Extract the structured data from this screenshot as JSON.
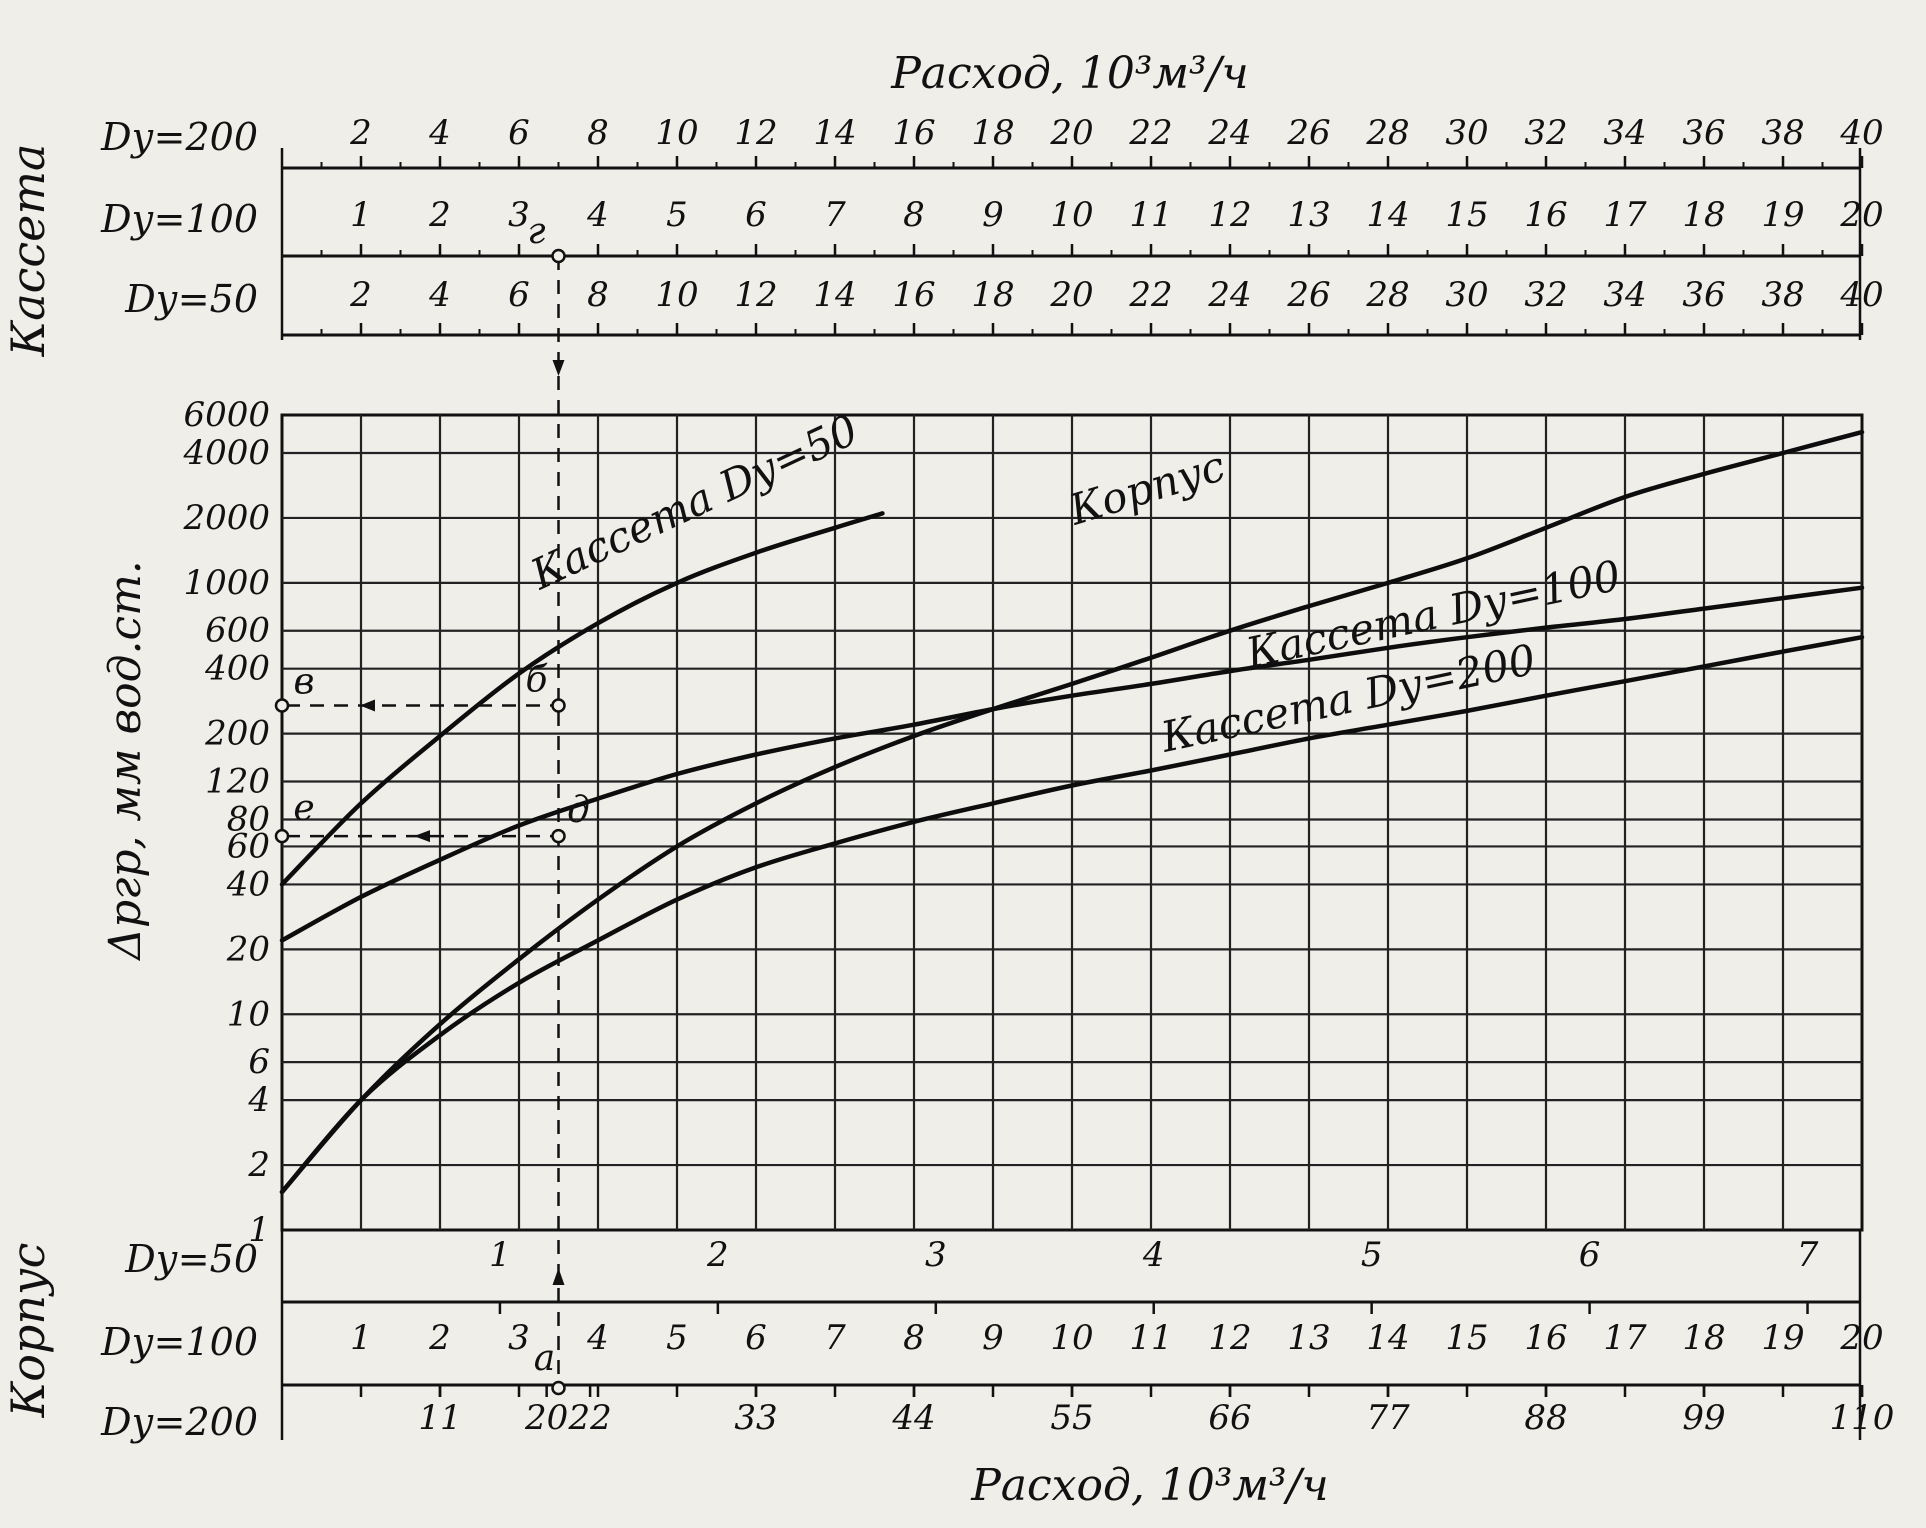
{
  "chart_data": {
    "type": "line",
    "title": "",
    "top_axis": {
      "title": "Расход, 10³м³/ч",
      "group_label": "Кассета",
      "rows": [
        {
          "name": "Dу=200",
          "ticks": [
            "2",
            "4",
            "6",
            "8",
            "10",
            "12",
            "14",
            "16",
            "18",
            "20",
            "22",
            "24",
            "26",
            "28",
            "30",
            "32",
            "34",
            "36",
            "38",
            "40"
          ]
        },
        {
          "name": "Dу=100",
          "ticks": [
            "1",
            "2",
            "3",
            "4",
            "5",
            "6",
            "7",
            "8",
            "9",
            "10",
            "11",
            "12",
            "13",
            "14",
            "15",
            "16",
            "17",
            "18",
            "19",
            "20"
          ]
        },
        {
          "name": "Dу=50",
          "ticks": [
            "2",
            "4",
            "6",
            "8",
            "10",
            "12",
            "14",
            "16",
            "18",
            "20",
            "22",
            "24",
            "26",
            "28",
            "30",
            "32",
            "34",
            "36",
            "38",
            "40"
          ]
        }
      ]
    },
    "bottom_axis": {
      "title": "Расход, 10³м³/ч",
      "group_label": "Корпус",
      "rows": [
        {
          "name": "Dу=50",
          "ticks": [
            "1",
            "2",
            "3",
            "4",
            "5",
            "6",
            "7"
          ]
        },
        {
          "name": "Dу=100",
          "ticks": [
            "1",
            "2",
            "3",
            "4",
            "5",
            "6",
            "7",
            "8",
            "9",
            "10",
            "11",
            "12",
            "13",
            "14",
            "15",
            "16",
            "17",
            "18",
            "19",
            "20"
          ]
        },
        {
          "name": "Dу=200",
          "ticks": [
            "11",
            "20",
            "22",
            "33",
            "44",
            "55",
            "66",
            "77",
            "88",
            "99",
            "110"
          ]
        }
      ]
    },
    "y_axis": {
      "title": "Δpгр, мм вод.ст.",
      "scale": "log",
      "ylim": [
        1,
        6000
      ],
      "tick_labels": [
        "1",
        "2",
        "4",
        "6",
        "10",
        "20",
        "40",
        "60",
        "80",
        "120",
        "200",
        "400",
        "600",
        "1000",
        "2000",
        "4000",
        "6000"
      ]
    },
    "x_axis": {
      "ref_row": "Корпус Dу=100",
      "xlim": [
        0,
        20
      ]
    },
    "series": [
      {
        "name": "Кассета Dу=50",
        "points": [
          [
            0,
            40
          ],
          [
            1,
            95
          ],
          [
            2,
            195
          ],
          [
            3,
            380
          ],
          [
            4,
            650
          ],
          [
            5,
            1000
          ],
          [
            6,
            1380
          ],
          [
            7,
            1800
          ],
          [
            7.6,
            2100
          ]
        ]
      },
      {
        "name": "Корпус",
        "points": [
          [
            0,
            1.5
          ],
          [
            1,
            4
          ],
          [
            2,
            9
          ],
          [
            3,
            18
          ],
          [
            4,
            34
          ],
          [
            5,
            60
          ],
          [
            6,
            95
          ],
          [
            7,
            140
          ],
          [
            8,
            195
          ],
          [
            9,
            260
          ],
          [
            10,
            340
          ],
          [
            11,
            450
          ],
          [
            12,
            600
          ],
          [
            13,
            780
          ],
          [
            14,
            1000
          ],
          [
            15,
            1300
          ],
          [
            16,
            1800
          ],
          [
            17,
            2500
          ],
          [
            18,
            3200
          ],
          [
            19,
            4000
          ],
          [
            20,
            5000
          ]
        ]
      },
      {
        "name": "Кассета Dу=100",
        "points": [
          [
            0,
            22
          ],
          [
            1,
            35
          ],
          [
            2,
            52
          ],
          [
            3,
            75
          ],
          [
            4,
            100
          ],
          [
            5,
            130
          ],
          [
            6,
            160
          ],
          [
            7,
            190
          ],
          [
            8,
            220
          ],
          [
            9,
            260
          ],
          [
            10,
            300
          ],
          [
            11,
            340
          ],
          [
            12,
            390
          ],
          [
            13,
            440
          ],
          [
            14,
            500
          ],
          [
            15,
            560
          ],
          [
            16,
            620
          ],
          [
            17,
            680
          ],
          [
            18,
            760
          ],
          [
            19,
            850
          ],
          [
            20,
            950
          ]
        ]
      },
      {
        "name": "Кассета Dу=200",
        "points": [
          [
            0,
            1.5
          ],
          [
            1,
            4
          ],
          [
            2,
            8
          ],
          [
            3,
            14
          ],
          [
            4,
            22
          ],
          [
            5,
            34
          ],
          [
            6,
            48
          ],
          [
            7,
            62
          ],
          [
            8,
            78
          ],
          [
            9,
            95
          ],
          [
            10,
            115
          ],
          [
            11,
            135
          ],
          [
            12,
            160
          ],
          [
            13,
            190
          ],
          [
            14,
            220
          ],
          [
            15,
            255
          ],
          [
            16,
            300
          ],
          [
            17,
            350
          ],
          [
            18,
            410
          ],
          [
            19,
            480
          ],
          [
            20,
            560
          ]
        ]
      }
    ],
    "annotations": [
      {
        "label": "а",
        "x": 3.5,
        "axis": "bottom"
      },
      {
        "label": "б",
        "x": 3.5,
        "y": 270
      },
      {
        "label": "в",
        "x": 0,
        "y": 270
      },
      {
        "label": "г",
        "x": 3.5,
        "axis": "top"
      },
      {
        "label": "д",
        "x": 3.5,
        "y": 67
      },
      {
        "label": "е",
        "x": 0,
        "y": 67
      }
    ]
  }
}
